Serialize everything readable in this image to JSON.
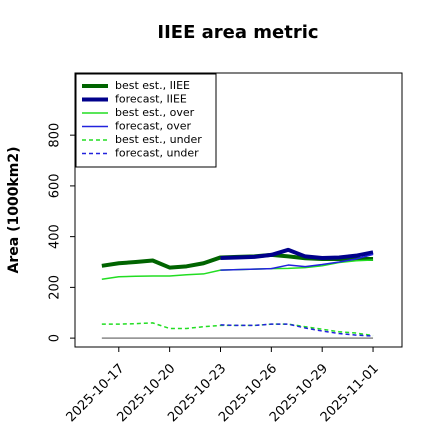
{
  "chart_data": {
    "type": "line",
    "title": "IIEE area metric",
    "y_label": "Area (1000km2)",
    "x": [
      "2025-10-16",
      "2025-10-17",
      "2025-10-18",
      "2025-10-19",
      "2025-10-20",
      "2025-10-21",
      "2025-10-22",
      "2025-10-23",
      "2025-10-24",
      "2025-10-25",
      "2025-10-26",
      "2025-10-27",
      "2025-10-28",
      "2025-10-29",
      "2025-10-30",
      "2025-10-31",
      "2025-11-01"
    ],
    "series": [
      {
        "name": "best est., IIEE",
        "color": "#006400",
        "width": 4,
        "dash": "solid",
        "values": [
          285,
          295,
          300,
          306,
          278,
          283,
          295,
          318,
          320,
          322,
          328,
          322,
          315,
          312,
          312,
          312,
          312
        ]
      },
      {
        "name": "forecast, IIEE",
        "color": "#00008b",
        "width": 4,
        "dash": "solid",
        "values": [
          null,
          null,
          null,
          null,
          null,
          null,
          null,
          316,
          318,
          320,
          328,
          348,
          322,
          316,
          318,
          325,
          338
        ]
      },
      {
        "name": "best est., over",
        "color": "#22dd22",
        "width": 1.5,
        "dash": "solid",
        "values": [
          232,
          242,
          244,
          245,
          245,
          250,
          253,
          268,
          270,
          272,
          274,
          275,
          278,
          285,
          298,
          305,
          308
        ]
      },
      {
        "name": "forecast, over",
        "color": "#2222dd",
        "width": 1.5,
        "dash": "solid",
        "values": [
          null,
          null,
          null,
          null,
          null,
          null,
          null,
          268,
          270,
          272,
          274,
          288,
          282,
          290,
          300,
          312,
          330
        ]
      },
      {
        "name": "best est., under",
        "color": "#22dd22",
        "width": 1.5,
        "dash": "dashed",
        "values": [
          55,
          55,
          57,
          60,
          38,
          38,
          45,
          50,
          50,
          50,
          55,
          55,
          45,
          35,
          25,
          20,
          10
        ]
      },
      {
        "name": "forecast, under",
        "color": "#2222dd",
        "width": 1.5,
        "dash": "dashed",
        "values": [
          null,
          null,
          null,
          null,
          null,
          null,
          null,
          52,
          50,
          50,
          55,
          55,
          40,
          28,
          18,
          12,
          8
        ]
      }
    ],
    "hline": {
      "value": 0,
      "color": "#888888"
    },
    "xlim": [
      "2025-10-14T10",
      "2025-11-02T17"
    ],
    "xticks": [
      "2025-10-17",
      "2025-10-20",
      "2025-10-23",
      "2025-10-26",
      "2025-10-29",
      "2025-11-01"
    ],
    "xtick_colors": [
      "#000000",
      "#000000",
      "#228b22",
      "#000000",
      "#000000",
      "#000000"
    ],
    "ylim": [
      -35,
      1045
    ],
    "yticks": [
      0,
      200,
      400,
      600,
      800
    ],
    "legend": "upper left"
  }
}
